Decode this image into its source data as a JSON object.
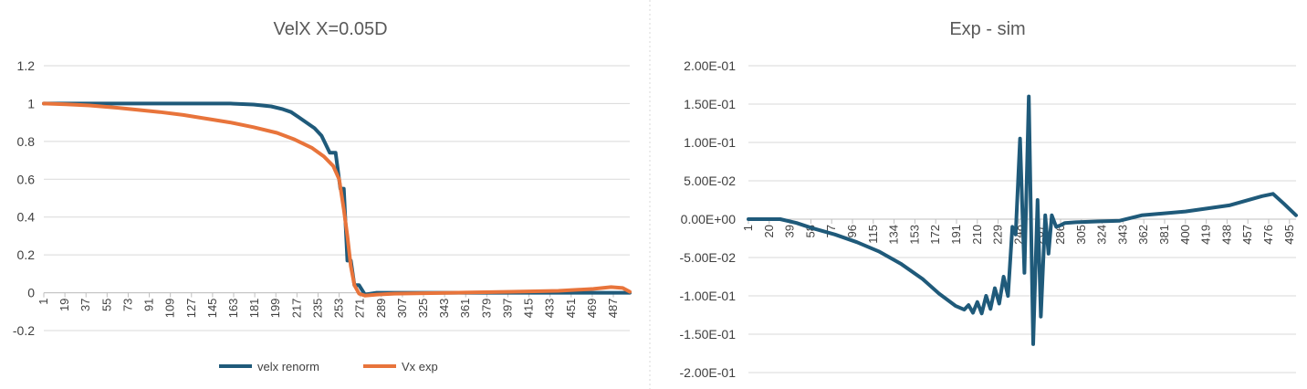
{
  "colors": {
    "series_blue": "#1f5a7a",
    "series_orange": "#e8743b"
  },
  "chart_data": [
    {
      "type": "line",
      "title": "VelX X=0.05D",
      "xlabel": "",
      "ylabel": "",
      "ylim": [
        -0.2,
        1.2
      ],
      "yticks": [
        "-0.2",
        "0",
        "0.2",
        "0.4",
        "0.6",
        "0.8",
        "1",
        "1.2"
      ],
      "ytick_values": [
        -0.2,
        0,
        0.2,
        0.4,
        0.6,
        0.8,
        1,
        1.2
      ],
      "xticks": [
        "1",
        "19",
        "37",
        "55",
        "73",
        "91",
        "109",
        "127",
        "145",
        "163",
        "181",
        "199",
        "217",
        "235",
        "253",
        "271",
        "289",
        "307",
        "325",
        "343",
        "361",
        "379",
        "397",
        "415",
        "433",
        "451",
        "469",
        "487"
      ],
      "xlim": [
        1,
        501
      ],
      "grid": true,
      "legend_position": "bottom",
      "series": [
        {
          "name": "velx renorm",
          "color": "#1f5a7a",
          "x": [
            1,
            100,
            160,
            180,
            195,
            205,
            212,
            218,
            225,
            232,
            238,
            245,
            250,
            254,
            257,
            260,
            263,
            266,
            270,
            275,
            285,
            300,
            350,
            400,
            450,
            480,
            501
          ],
          "y": [
            1,
            1,
            1,
            0.995,
            0.985,
            0.97,
            0.955,
            0.93,
            0.9,
            0.87,
            0.83,
            0.74,
            0.74,
            0.55,
            0.55,
            0.17,
            0.17,
            0.04,
            0.04,
            -0.01,
            0,
            0,
            0,
            0,
            0,
            0,
            0
          ]
        },
        {
          "name": "Vx exp",
          "color": "#e8743b",
          "x": [
            1,
            20,
            40,
            60,
            80,
            100,
            120,
            140,
            160,
            180,
            200,
            215,
            230,
            240,
            248,
            253,
            257,
            260,
            263,
            266,
            270,
            275,
            285,
            300,
            350,
            400,
            440,
            470,
            485,
            495,
            501
          ],
          "y": [
            1,
            0.996,
            0.99,
            0.98,
            0.968,
            0.955,
            0.94,
            0.92,
            0.9,
            0.875,
            0.845,
            0.81,
            0.765,
            0.72,
            0.67,
            0.6,
            0.44,
            0.3,
            0.14,
            0.04,
            -0.005,
            -0.015,
            -0.01,
            -0.005,
            0,
            0.005,
            0.01,
            0.02,
            0.03,
            0.025,
            0.005
          ]
        }
      ]
    },
    {
      "type": "line",
      "title": "Exp - sim",
      "xlabel": "",
      "ylabel": "",
      "ylim": [
        -0.2,
        0.2
      ],
      "yticks": [
        "-2.00E-01",
        "-1.50E-01",
        "-1.00E-01",
        "-5.00E-02",
        "0.00E+00",
        "5.00E-02",
        "1.00E-01",
        "1.50E-01",
        "2.00E-01"
      ],
      "ytick_values": [
        -0.2,
        -0.15,
        -0.1,
        -0.05,
        0,
        0.05,
        0.1,
        0.15,
        0.2
      ],
      "xticks": [
        "1",
        "20",
        "39",
        "58",
        "77",
        "96",
        "115",
        "134",
        "153",
        "172",
        "191",
        "210",
        "229",
        "248",
        "267",
        "286",
        "305",
        "324",
        "343",
        "362",
        "381",
        "400",
        "419",
        "438",
        "457",
        "476",
        "495"
      ],
      "xlim": [
        1,
        501
      ],
      "grid": true,
      "legend_position": "none",
      "series": [
        {
          "color": "#1f5a7a",
          "x": [
            1,
            20,
            30,
            45,
            60,
            80,
            100,
            120,
            140,
            160,
            175,
            190,
            198,
            202,
            206,
            210,
            214,
            218,
            222,
            226,
            230,
            234,
            238,
            242,
            245,
            249,
            253,
            257,
            261,
            265,
            268,
            272,
            275,
            278,
            282,
            286,
            290,
            300,
            320,
            340,
            360,
            400,
            440,
            470,
            480,
            490,
            501
          ],
          "y": [
            0,
            0,
            0,
            -0.005,
            -0.012,
            -0.02,
            -0.03,
            -0.042,
            -0.058,
            -0.078,
            -0.097,
            -0.113,
            -0.118,
            -0.112,
            -0.122,
            -0.108,
            -0.123,
            -0.1,
            -0.117,
            -0.09,
            -0.11,
            -0.075,
            -0.1,
            -0.01,
            -0.02,
            0.105,
            -0.07,
            0.16,
            -0.163,
            0.025,
            -0.127,
            0.005,
            -0.045,
            0.005,
            -0.01,
            -0.008,
            -0.005,
            -0.004,
            -0.003,
            -0.002,
            0.005,
            0.01,
            0.018,
            0.03,
            0.033,
            0.02,
            0.005
          ]
        }
      ]
    }
  ]
}
